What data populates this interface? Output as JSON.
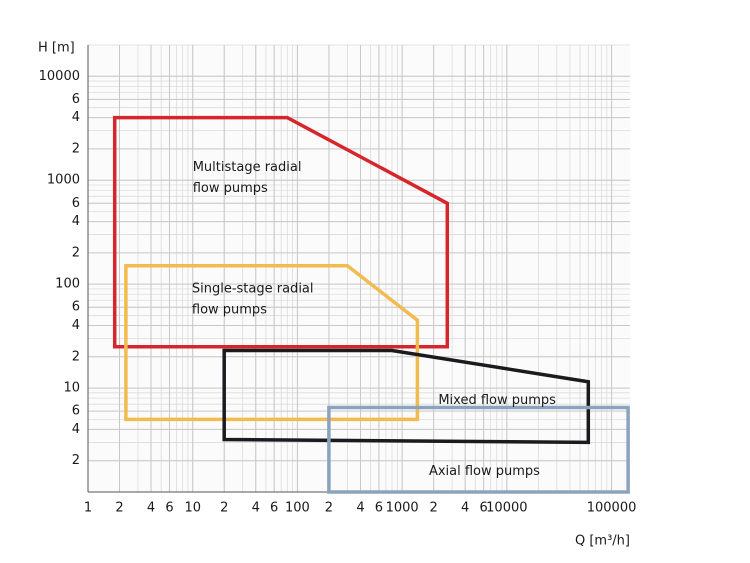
{
  "chart_data": {
    "type": "polygon",
    "x_label": "Q [m³/h]",
    "y_label": "H [m]",
    "xscale": "log",
    "yscale": "log",
    "xlim": [
      1,
      150000
    ],
    "ylim": [
      1,
      20000
    ],
    "grid": true,
    "minor_grid": true,
    "xticks": [
      1,
      2,
      4,
      6,
      10,
      {
        "value": 20,
        "label": "2"
      },
      {
        "value": 40,
        "label": "4"
      },
      {
        "value": 60,
        "label": "6"
      },
      100,
      {
        "value": 200,
        "label": "2"
      },
      {
        "value": 400,
        "label": "4"
      },
      {
        "value": 600,
        "label": "6"
      },
      1000,
      {
        "value": 2000,
        "label": "2"
      },
      {
        "value": 4000,
        "label": "4"
      },
      {
        "value": 6000,
        "label": "6"
      },
      10000,
      100000
    ],
    "yticks": [
      2,
      4,
      6,
      10,
      {
        "value": 20,
        "label": "2"
      },
      {
        "value": 40,
        "label": "4"
      },
      {
        "value": 60,
        "label": "6"
      },
      100,
      {
        "value": 200,
        "label": "2"
      },
      {
        "value": 400,
        "label": "4"
      },
      {
        "value": 600,
        "label": "6"
      },
      1000,
      {
        "value": 2000,
        "label": "2"
      },
      {
        "value": 4000,
        "label": "4"
      },
      {
        "value": 6000,
        "label": "6"
      },
      10000
    ],
    "series": [
      {
        "label": [
          "Multistage radial",
          "flow pumps"
        ],
        "color": "#d7262b",
        "x": [
          1.8,
          1.8,
          80,
          2700,
          2700
        ],
        "values": [
          25,
          4000,
          4000,
          600,
          25
        ]
      },
      {
        "label": [
          "Single-stage radial",
          "flow pumps"
        ],
        "color": "#f2bb4f",
        "x": [
          2.3,
          2.3,
          300,
          1400,
          1400
        ],
        "values": [
          5,
          150,
          150,
          45,
          5
        ]
      },
      {
        "label": [
          "Mixed flow pumps"
        ],
        "color": "#1b1b1f",
        "x": [
          20,
          20,
          800,
          60000,
          60000
        ],
        "values": [
          3.2,
          23,
          23,
          11.5,
          3
        ]
      },
      {
        "label": [
          "Axial flow pumps"
        ],
        "color": "#8aa4bd",
        "x": [
          200,
          200,
          144000,
          144000
        ],
        "values": [
          1,
          6.5,
          6.5,
          1
        ]
      }
    ]
  }
}
